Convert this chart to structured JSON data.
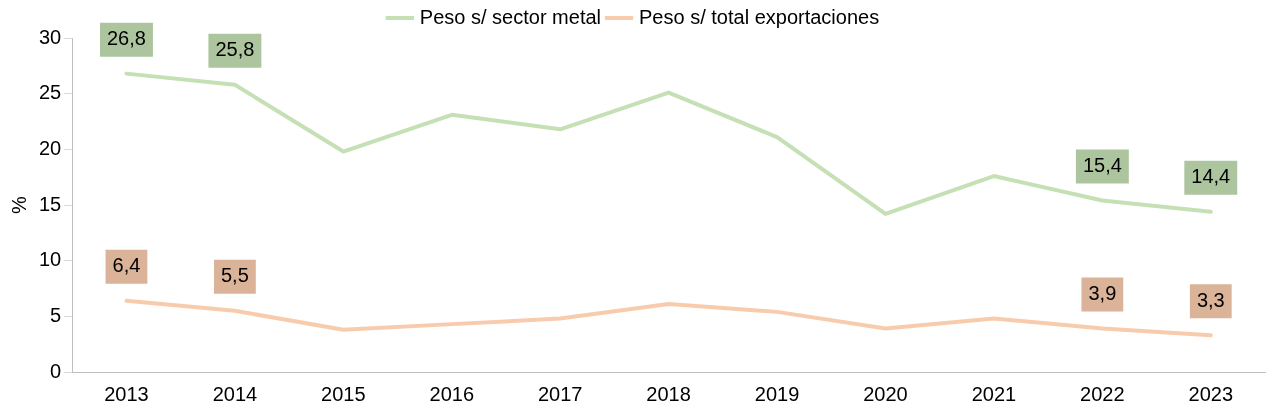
{
  "chart_data": {
    "type": "line",
    "ylabel": "%",
    "categories": [
      "2013",
      "2014",
      "2015",
      "2016",
      "2017",
      "2018",
      "2019",
      "2020",
      "2021",
      "2022",
      "2023"
    ],
    "series": [
      {
        "name": "Peso s/ sector metal",
        "color": "#c5e0b4",
        "values": [
          26.8,
          25.8,
          19.8,
          23.1,
          21.8,
          25.1,
          21.1,
          14.2,
          17.6,
          15.4,
          14.4
        ],
        "value_labels": [
          "26,8",
          "25,8",
          null,
          null,
          null,
          null,
          null,
          null,
          null,
          "15,4",
          "14,4"
        ]
      },
      {
        "name": "Peso s/ total exportaciones",
        "color": "#f8cbad",
        "values": [
          6.4,
          5.5,
          3.8,
          4.3,
          4.8,
          6.1,
          5.4,
          3.9,
          4.8,
          3.9,
          3.3
        ],
        "value_labels": [
          "6,4",
          "5,5",
          null,
          null,
          null,
          null,
          null,
          null,
          null,
          "3,9",
          "3,3"
        ]
      }
    ],
    "ylim": [
      0,
      30
    ],
    "yticks": [
      0,
      5,
      10,
      15,
      20,
      25,
      30
    ],
    "grid": false,
    "legend": "top",
    "marker": "none",
    "line_style": "solid"
  }
}
